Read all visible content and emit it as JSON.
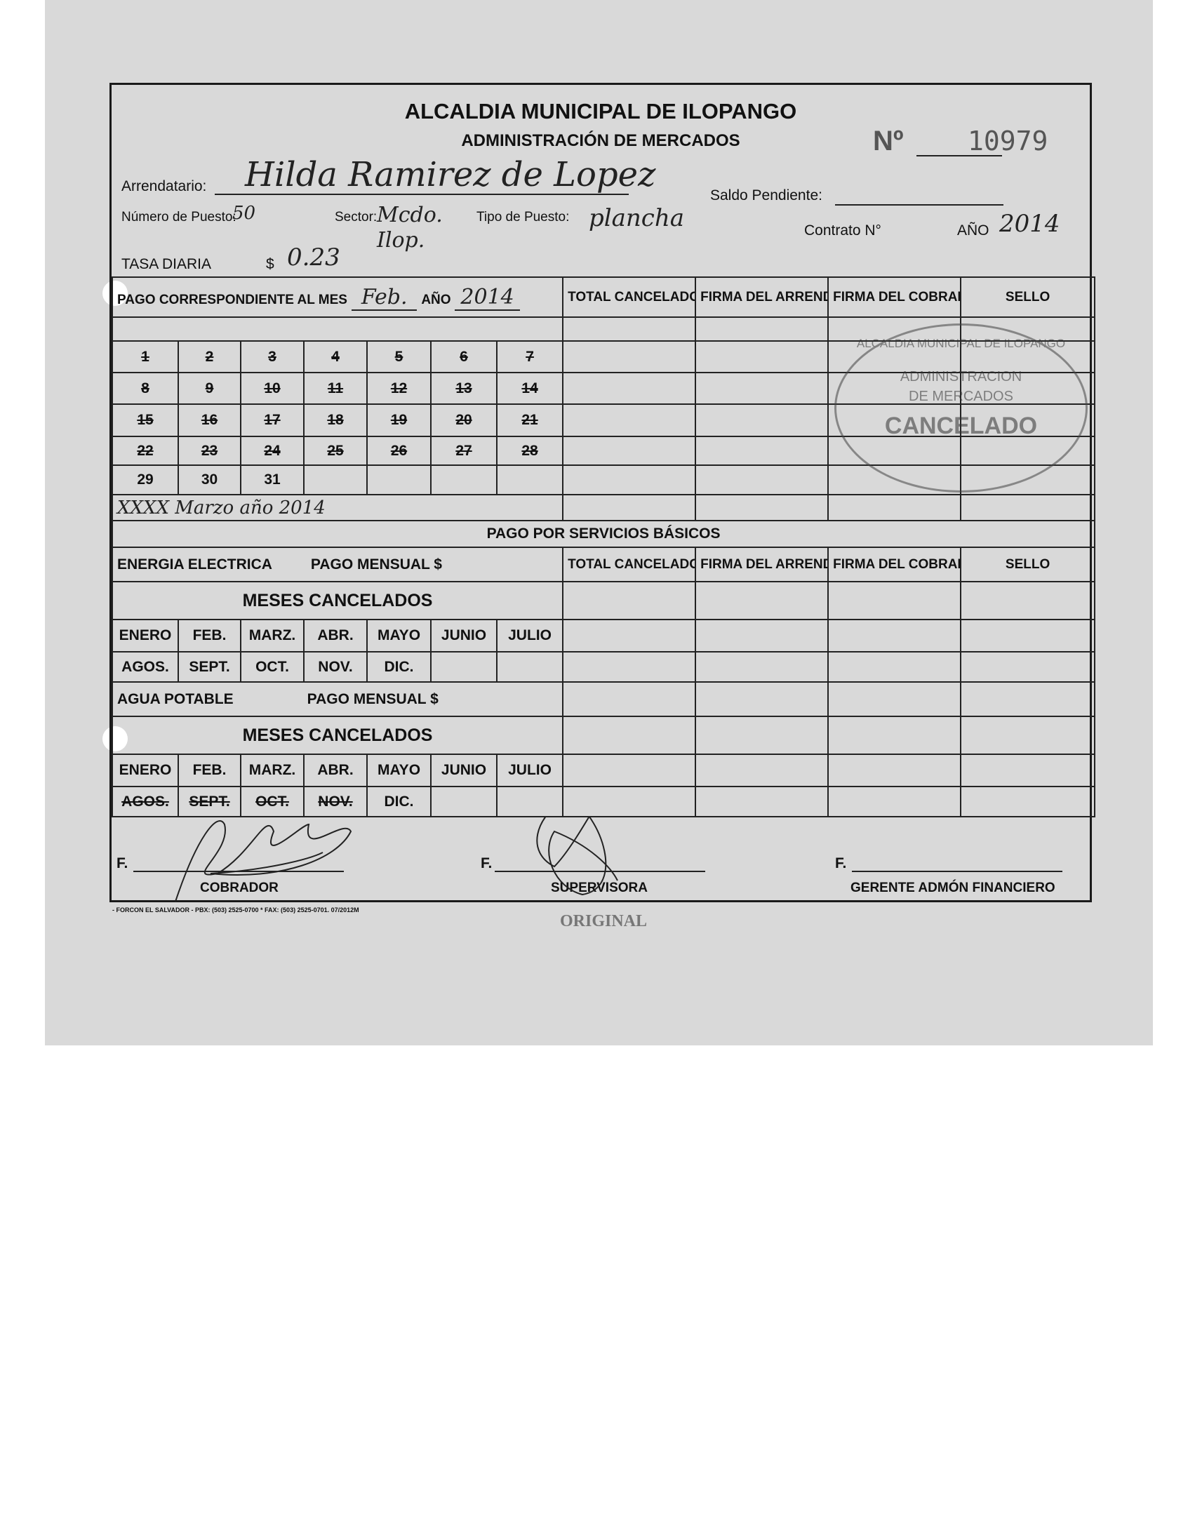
{
  "header": {
    "title": "ALCALDIA MUNICIPAL DE ILOPANGO",
    "subtitle": "ADMINISTRACIÓN DE MERCADOS",
    "number_label": "Nº",
    "number": "10979"
  },
  "fields": {
    "arrendatario_label": "Arrendatario:",
    "arrendatario": "Hilda Ramirez de Lopez",
    "saldo_label": "Saldo Pendiente:",
    "saldo": "",
    "puesto_label": "Número de Puesto:",
    "puesto": "50",
    "sector_label": "Sector:",
    "sector": "Mcdo. Ilop.",
    "tipo_label": "Tipo de Puesto:",
    "tipo": "plancha",
    "contrato_label": "Contrato N°",
    "contrato": "",
    "anio_label": "AÑO",
    "anio": "2014",
    "tasa_label": "TASA DIARIA",
    "tasa_currency": "$",
    "tasa": "0.23"
  },
  "pago": {
    "label": "PAGO CORRESPONDIENTE AL MES",
    "mes": "Feb.",
    "anio_label": "AÑO",
    "anio": "2014",
    "cols": [
      "TOTAL CANCELADO",
      "FIRMA DEL ARRENDATARIO",
      "FIRMA DEL COBRADOR",
      "SELLO"
    ],
    "days": [
      [
        "1",
        "2",
        "3",
        "4",
        "5",
        "6",
        "7"
      ],
      [
        "8",
        "9",
        "10",
        "11",
        "12",
        "13",
        "14"
      ],
      [
        "15",
        "16",
        "17",
        "18",
        "19",
        "20",
        "21"
      ],
      [
        "22",
        "23",
        "24",
        "25",
        "26",
        "27",
        "28"
      ],
      [
        "29",
        "30",
        "31",
        "",
        "",
        "",
        ""
      ]
    ],
    "note": "XXXX Marzo año 2014"
  },
  "stamp": {
    "ring": "ALCALDIA MUNICIPAL DE ILOPANGO",
    "line1": "ADMINISTRACION",
    "line2": "DE MERCADOS",
    "status": "CANCELADO"
  },
  "servicios": {
    "title": "PAGO POR SERVICIOS BÁSICOS",
    "energia": {
      "label": "ENERGIA ELECTRICA",
      "pago": "PAGO MENSUAL $",
      "meses": "MESES CANCELADOS"
    },
    "agua": {
      "label": "AGUA POTABLE",
      "pago": "PAGO MENSUAL $",
      "meses": "MESES CANCELADOS"
    },
    "months1": [
      "ENERO",
      "FEB.",
      "MARZ.",
      "ABR.",
      "MAYO",
      "JUNIO",
      "JULIO"
    ],
    "months2": [
      "AGOS.",
      "SEPT.",
      "OCT.",
      "NOV.",
      "DIC.",
      "",
      ""
    ]
  },
  "signatures": {
    "f": "F.",
    "cobrador": "COBRADOR",
    "supervisora": "SUPERVISORA",
    "gerente": "GERENTE ADMÓN FINANCIERO"
  },
  "footer": {
    "printer": "- FORCON EL SALVADOR - PBX: (503) 2525-0700 * FAX: (503) 2525-0701. 07/2012M",
    "copy": "ORIGINAL"
  }
}
